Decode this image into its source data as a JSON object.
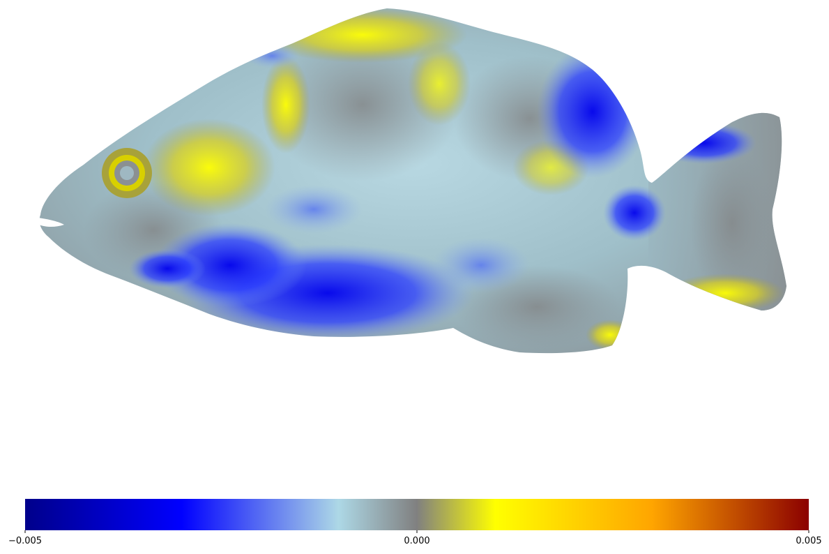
{
  "chart_data": {
    "type": "heatmap",
    "title": "",
    "xlabel": "",
    "ylabel": "",
    "grid": false,
    "colorbar": {
      "orientation": "horizontal",
      "placement": "bottom",
      "range": [
        -0.005,
        0.005
      ],
      "ticks": [
        {
          "value": -0.005,
          "label": "−0.005"
        },
        {
          "value": 0.0,
          "label": "0.000"
        },
        {
          "value": 0.005,
          "label": "0.005"
        }
      ],
      "colormap_stops": [
        {
          "value": -0.005,
          "color": "#00008b"
        },
        {
          "value": -0.003,
          "color": "#0000ff"
        },
        {
          "value": -0.001,
          "color": "#add8e6"
        },
        {
          "value": 0.0,
          "color": "#808080"
        },
        {
          "value": 0.001,
          "color": "#ffff00"
        },
        {
          "value": 0.003,
          "color": "#ffa500"
        },
        {
          "value": 0.005,
          "color": "#8b0000"
        }
      ]
    },
    "image_subject": "fish"
  }
}
